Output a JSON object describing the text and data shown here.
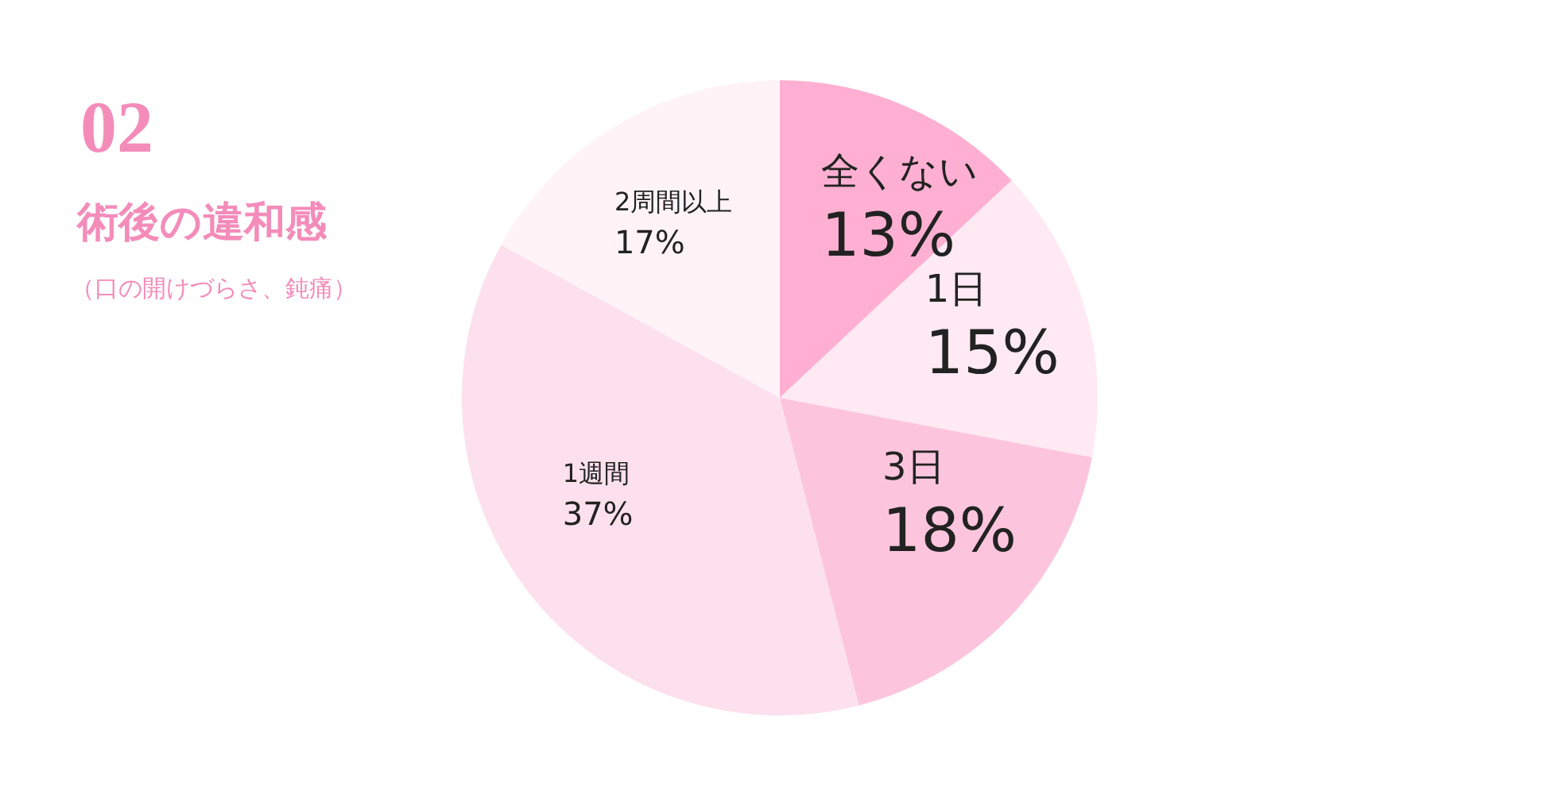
{
  "chart_data": {
    "type": "pie",
    "title": "02",
    "subtitle": "術後の違和感",
    "annotations": [
      "（口の開けづらさ、鈍痛）"
    ],
    "categories": [
      "全くない",
      "1日",
      "3日",
      "1週間",
      "2周間以上"
    ],
    "values": [
      13,
      15,
      18,
      37,
      17
    ],
    "value_labels": [
      "13%",
      "15%",
      "18%",
      "37%",
      "17%"
    ],
    "colors": [
      "#ffb0d2",
      "#ffe9f2",
      "#fdc5dd",
      "#fde0ed",
      "#fff3f7"
    ]
  }
}
